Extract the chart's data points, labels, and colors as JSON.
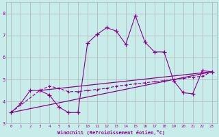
{
  "xlabel": "Windchill (Refroidissement éolien,°C)",
  "bg_color": "#c8ecea",
  "line_color": "#880088",
  "grid_color": "#b0b0b0",
  "ylim": [
    3.0,
    8.5
  ],
  "yticks": [
    3,
    4,
    5,
    6,
    7,
    8
  ],
  "xtick_labels": [
    "0",
    "1",
    "2",
    "3",
    "4",
    "5",
    "6",
    "7",
    "10",
    "11",
    "12",
    "13",
    "14",
    "15",
    "16",
    "17",
    "18",
    "19",
    "20",
    "21",
    "22",
    "23"
  ],
  "series1_xi": [
    0,
    1,
    2,
    3,
    4,
    5,
    6,
    7,
    8,
    9,
    10,
    11,
    12,
    13,
    14,
    15,
    16,
    17,
    18,
    19,
    20,
    21
  ],
  "series1_y": [
    3.5,
    3.9,
    4.5,
    4.5,
    4.3,
    3.75,
    3.5,
    3.5,
    6.65,
    7.05,
    7.35,
    7.2,
    6.6,
    7.9,
    6.7,
    6.25,
    6.25,
    4.95,
    4.4,
    4.35,
    5.4,
    5.35
  ],
  "series2_xi": [
    0,
    3,
    4,
    5,
    6,
    7,
    8,
    9,
    10,
    11,
    12,
    13,
    14,
    15,
    16,
    17,
    18,
    19,
    20,
    21
  ],
  "series2_y": [
    3.5,
    4.5,
    4.7,
    4.6,
    4.45,
    4.45,
    4.5,
    4.55,
    4.6,
    4.7,
    4.75,
    4.8,
    4.85,
    4.9,
    4.95,
    5.0,
    5.05,
    5.1,
    5.15,
    5.35
  ],
  "series3_xi": [
    0,
    21
  ],
  "series3_y": [
    3.5,
    5.35
  ],
  "series4_xi": [
    3,
    21
  ],
  "series4_y": [
    4.5,
    5.35
  ]
}
